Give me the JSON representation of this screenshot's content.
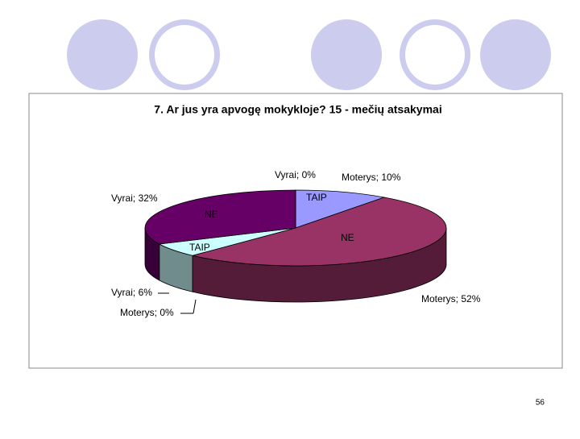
{
  "chart_data": {
    "type": "pie3d",
    "title": "7. Ar jus yra apvogę mokykloje?   15 - mečių atsakymai",
    "values": [
      10,
      52,
      0,
      6,
      32,
      0
    ],
    "value_labels": [
      "Moterys; 10%",
      "Moterys; 52%",
      "Moterys; 0%",
      "Vyrai; 6%",
      "Vyrai; 32%",
      "Vyrai; 0%"
    ],
    "slice_labels": [
      "TAIP",
      "NE",
      null,
      "TAIP",
      "NE",
      null
    ],
    "colors": [
      "#9999ff",
      "#993366",
      "#993366",
      "#ccffff",
      "#660066",
      "#660066"
    ]
  },
  "page_number": "56"
}
